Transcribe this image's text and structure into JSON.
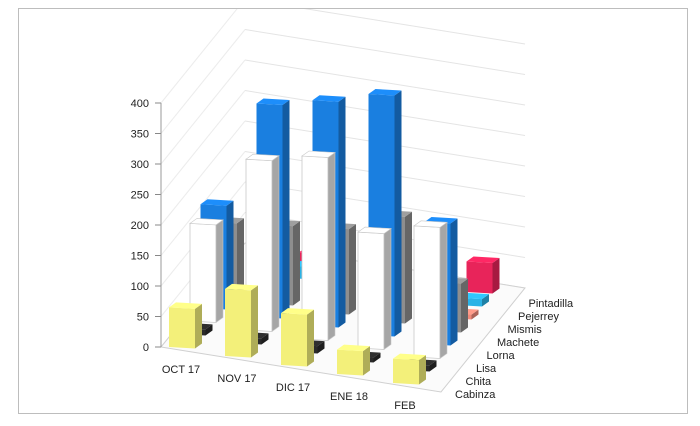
{
  "chart_data": {
    "type": "bar",
    "subtype": "3d-column",
    "categories": [
      "OCT 17",
      "NOV 17",
      "DIC 17",
      "ENE 18",
      "FEB"
    ],
    "series": [
      {
        "name": "Cabinza",
        "color": "#f3f07a",
        "values": [
          65,
          110,
          85,
          40,
          40
        ]
      },
      {
        "name": "Chita",
        "color": "#2a2a2a",
        "values": [
          10,
          10,
          12,
          8,
          10
        ]
      },
      {
        "name": "Lisa",
        "color": "#ffffff",
        "values": [
          160,
          280,
          300,
          190,
          215
        ]
      },
      {
        "name": "Lorna",
        "color": "#1a7fe0",
        "values": [
          170,
          350,
          370,
          395,
          200
        ]
      },
      {
        "name": "Machete",
        "color": "#8e8e8e",
        "values": [
          120,
          130,
          140,
          175,
          80
        ]
      },
      {
        "name": "Mismis",
        "color": "#f08a7a",
        "values": [
          0,
          0,
          0,
          0,
          8
        ]
      },
      {
        "name": "Pejerrey",
        "color": "#2bb3e6",
        "values": [
          0,
          20,
          0,
          0,
          12
        ]
      },
      {
        "name": "Pintadilla",
        "color": "#e8245a",
        "values": [
          0,
          20,
          0,
          0,
          50
        ]
      }
    ],
    "y_ticks": [
      0,
      50,
      100,
      150,
      200,
      250,
      300,
      350,
      400
    ],
    "ylim": [
      0,
      400
    ],
    "grid": true,
    "legend": "none"
  }
}
